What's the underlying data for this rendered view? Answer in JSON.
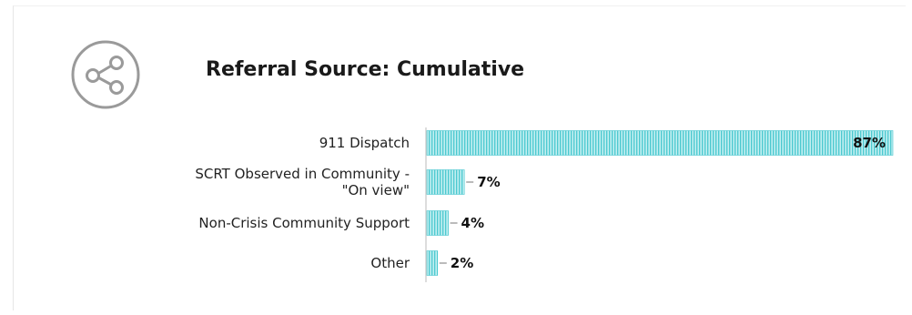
{
  "chart_data": {
    "type": "bar",
    "orientation": "horizontal",
    "title": "Referral Source: Cumulative",
    "categories": [
      "911 Dispatch",
      "SCRT Observed in Community - \"On view\"",
      "Non-Crisis Community Support",
      "Other"
    ],
    "category_lines": [
      [
        "911 Dispatch"
      ],
      [
        "SCRT Observed in Community -",
        "\"On view\""
      ],
      [
        "Non-Crisis Community Support"
      ],
      [
        "Other"
      ]
    ],
    "values": [
      87,
      7,
      4,
      2
    ],
    "value_labels": [
      "87%",
      "7%",
      "4%",
      "2%"
    ],
    "xlim": [
      0,
      87
    ],
    "grid": false,
    "legend": "none",
    "colors": {
      "bar": "#4cc9d0",
      "bar_fill": "#bfeef0",
      "axis": "#bbbbbb",
      "icon": "#9a9a9a"
    },
    "icon": "share-icon"
  }
}
